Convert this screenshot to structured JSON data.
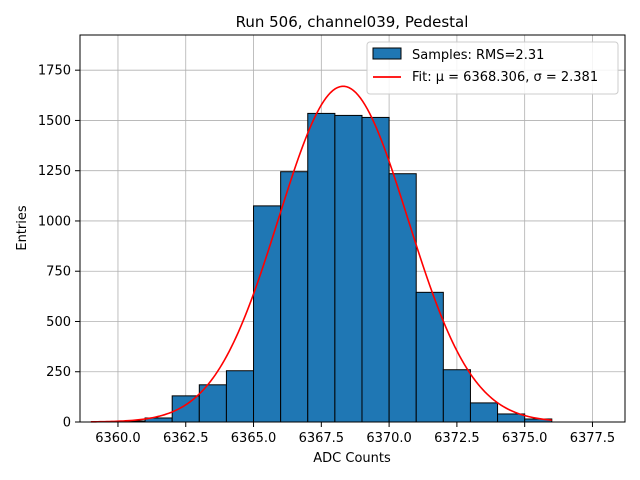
{
  "chart_data": {
    "type": "bar",
    "title": "Run 506, channel039, Pedestal",
    "xlabel": "ADC Counts",
    "ylabel": "Entries",
    "xlim": [
      6358.6,
      6378.7
    ],
    "ylim": [
      0,
      1925
    ],
    "xticks": [
      6360.0,
      6362.5,
      6365.0,
      6367.5,
      6370.0,
      6372.5,
      6375.0,
      6377.5
    ],
    "xtick_labels": [
      "6360.0",
      "6362.5",
      "6365.0",
      "6367.5",
      "6370.0",
      "6372.5",
      "6375.0",
      "6377.5"
    ],
    "yticks": [
      0,
      250,
      500,
      750,
      1000,
      1250,
      1500,
      1750
    ],
    "ytick_labels": [
      "0",
      "250",
      "500",
      "750",
      "1000",
      "1250",
      "1500",
      "1750"
    ],
    "grid": true,
    "legend_position": "top-right",
    "histogram": {
      "name": "Samples: RMS=2.31",
      "bin_edges": [
        6360,
        6361,
        6362,
        6363,
        6364,
        6365,
        6366,
        6367,
        6368,
        6369,
        6370,
        6371,
        6372,
        6373,
        6374,
        6375,
        6376
      ],
      "counts": [
        5,
        20,
        130,
        185,
        255,
        1075,
        1245,
        1535,
        1525,
        1515,
        1235,
        645,
        260,
        95,
        40,
        15
      ],
      "color": "#1f77b4",
      "edge_color": "#000000"
    },
    "fit": {
      "name": "Fit: μ = 6368.306, σ = 2.381",
      "mu": 6368.306,
      "sigma": 2.381,
      "amplitude": 1670,
      "x_range": [
        6359,
        6376
      ],
      "color": "#ff0000"
    }
  }
}
